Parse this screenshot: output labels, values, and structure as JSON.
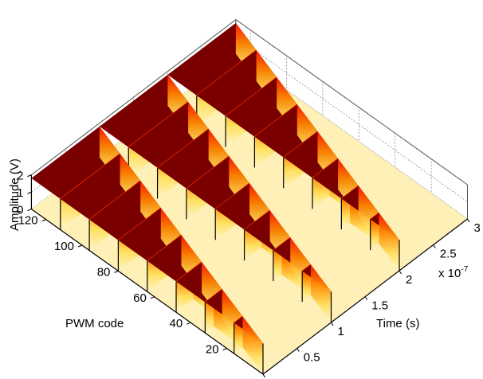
{
  "chart_data": {
    "type": "surface",
    "colormap": "hot (reversed)",
    "colors": {
      "high": "#7a0000",
      "mid": "#ff2200",
      "low": "#fff0b8"
    },
    "zlabel": "Amplitude (V)",
    "ylabel": "PWM code",
    "xlabel": "Time (s)",
    "x_exponent": "x 10",
    "x_exponent_power": "-7",
    "x_unit_scale": 1e-07,
    "xlim": [
      0,
      3
    ],
    "ylim": [
      0,
      128
    ],
    "zlim": [
      0,
      2
    ],
    "x_ticks": [
      "0",
      "0.5",
      "1",
      "1.5",
      "2",
      "2.5",
      "3"
    ],
    "y_ticks": [
      "20",
      "40",
      "60",
      "80",
      "100",
      "120"
    ],
    "z_ticks": [
      "0",
      "1",
      "2"
    ],
    "grid": true,
    "pwm_period": 1,
    "high_level": 1.8,
    "low_level": 0,
    "code_max": 128,
    "code_step": 16
  }
}
